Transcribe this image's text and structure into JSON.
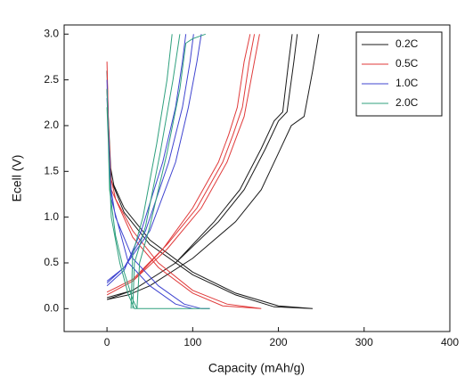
{
  "chart_data": {
    "type": "line",
    "xlabel": "Capacity (mAh/g)",
    "ylabel": "Ecell (V)",
    "xlim": [
      -50,
      400
    ],
    "xticks": [
      0,
      100,
      200,
      300,
      400
    ],
    "ylim": [
      -0.25,
      3.1
    ],
    "yticks": [
      {
        "value": 0,
        "label": "0.0"
      },
      0.5,
      {
        "value": 1,
        "label": "1.0"
      },
      1.5,
      {
        "value": 2,
        "label": "2.0"
      },
      2.5,
      {
        "value": 3,
        "label": "3.0"
      }
    ],
    "legend": "upper right",
    "series": [
      {
        "name": "0.2C",
        "color": "#1a1a1a",
        "x": [
          0,
          3,
          8,
          20,
          50,
          100,
          150,
          200,
          240,
          null,
          0,
          5,
          20,
          50,
          100,
          150,
          195,
          240,
          null,
          0,
          25,
          50,
          100,
          150,
          180,
          200,
          215,
          230,
          240,
          247,
          null,
          0,
          30,
          80,
          130,
          160,
          185,
          200,
          210,
          218,
          222,
          null,
          0,
          30,
          80,
          125,
          155,
          180,
          195,
          205,
          212,
          216
        ],
        "values": [
          2.6,
          1.6,
          1.35,
          1.1,
          0.75,
          0.4,
          0.17,
          0.03,
          0,
          null,
          2.4,
          1.4,
          1.05,
          0.7,
          0.37,
          0.15,
          0.02,
          0,
          null,
          0.1,
          0.15,
          0.25,
          0.55,
          0.95,
          1.3,
          1.7,
          2.0,
          2.1,
          2.6,
          3.0,
          null,
          0.12,
          0.2,
          0.5,
          0.95,
          1.3,
          1.75,
          2.05,
          2.15,
          2.7,
          3.0,
          null,
          0.1,
          0.2,
          0.5,
          0.95,
          1.3,
          1.75,
          2.05,
          2.15,
          2.7,
          3.0
        ]
      },
      {
        "name": "0.5C",
        "color": "#e03a3a",
        "x": [
          0,
          3,
          10,
          30,
          60,
          100,
          140,
          180,
          null,
          0,
          5,
          30,
          60,
          100,
          135,
          180,
          null,
          0,
          30,
          70,
          110,
          140,
          150,
          160,
          170,
          178,
          null,
          0,
          30,
          70,
          105,
          135,
          147,
          158,
          166,
          172,
          null,
          0,
          30,
          65,
          100,
          130,
          142,
          152,
          160,
          167
        ],
        "values": [
          2.7,
          1.5,
          1.2,
          0.85,
          0.5,
          0.2,
          0.05,
          0,
          null,
          2.4,
          1.3,
          0.78,
          0.45,
          0.17,
          0.03,
          0,
          null,
          0.15,
          0.3,
          0.65,
          1.1,
          1.6,
          1.85,
          2.1,
          2.6,
          3.0,
          null,
          0.18,
          0.32,
          0.7,
          1.1,
          1.6,
          1.9,
          2.2,
          2.7,
          3.0,
          null,
          0.15,
          0.3,
          0.65,
          1.1,
          1.6,
          1.9,
          2.2,
          2.7,
          3.0
        ]
      },
      {
        "name": "1.0C",
        "color": "#3f44d0",
        "x": [
          0,
          3,
          10,
          30,
          60,
          90,
          110,
          120,
          null,
          0,
          5,
          25,
          50,
          80,
          100,
          null,
          0,
          20,
          50,
          80,
          95,
          105,
          110,
          null,
          0,
          20,
          45,
          72,
          88,
          97,
          101,
          null,
          0,
          20,
          40,
          65,
          80,
          88,
          92
        ],
        "values": [
          2.5,
          1.4,
          1.0,
          0.55,
          0.25,
          0.05,
          0,
          0,
          null,
          2.3,
          1.2,
          0.5,
          0.25,
          0.05,
          0,
          null,
          0.3,
          0.45,
          0.85,
          1.6,
          2.2,
          2.7,
          3.0,
          null,
          0.28,
          0.45,
          0.85,
          1.6,
          2.2,
          2.7,
          3.0,
          null,
          0.25,
          0.42,
          0.85,
          1.6,
          2.2,
          2.7,
          3.0
        ]
      },
      {
        "name": "2.0C",
        "color": "#2fa07e",
        "x": [
          0,
          3,
          10,
          20,
          30,
          35,
          120,
          null,
          0,
          5,
          15,
          25,
          32,
          90,
          null,
          35,
          38,
          50,
          70,
          85,
          92,
          100,
          115,
          null,
          30,
          32,
          45,
          62,
          77,
          85,
          null,
          28,
          30,
          42,
          58,
          70,
          76
        ],
        "values": [
          2.4,
          1.3,
          0.8,
          0.4,
          0.1,
          0,
          0,
          null,
          2.2,
          1.0,
          0.5,
          0.15,
          0,
          0,
          null,
          0,
          0.5,
          0.9,
          1.7,
          2.4,
          2.9,
          2.95,
          3.0,
          null,
          0,
          0.5,
          0.9,
          1.7,
          2.5,
          3.0,
          null,
          0,
          0.6,
          1.0,
          1.8,
          2.5,
          3.0
        ]
      }
    ]
  }
}
